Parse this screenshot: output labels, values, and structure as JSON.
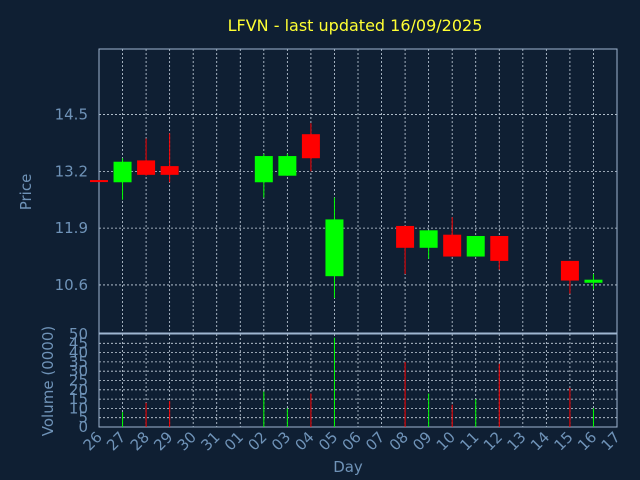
{
  "colors": {
    "background": "#0f1f33",
    "title": "#ffff33",
    "axis_text": "#6f93b8",
    "frame": "#9fb6d0",
    "grid": "#c8d4e0",
    "up": "#00ff00",
    "down": "#ff0000"
  },
  "chart_data": {
    "type": "candlestick",
    "title": "LFVN - last updated 16/09/2025",
    "xlabel": "Day",
    "ylabel": "Price",
    "volume_ylabel": "Volume (0000)",
    "price_ylim": [
      9.5,
      16.0
    ],
    "price_ticks": [
      "10.6",
      "11.9",
      "13.2",
      "14.5"
    ],
    "volume_ylim": [
      0,
      50
    ],
    "volume_ticks": [
      "0",
      "5",
      "10",
      "15",
      "20",
      "25",
      "30",
      "35",
      "40",
      "45",
      "50"
    ],
    "x_ticks": [
      "26",
      "27",
      "28",
      "29",
      "30",
      "31",
      "01",
      "02",
      "03",
      "04",
      "05",
      "06",
      "07",
      "08",
      "09",
      "10",
      "11",
      "12",
      "13",
      "14",
      "15",
      "16",
      "17"
    ],
    "grid": true,
    "candles": [
      {
        "day": "26",
        "open": 13.0,
        "close": 12.97,
        "high": 13.0,
        "low": 12.97,
        "volume": 0
      },
      {
        "day": "27",
        "open": 12.95,
        "close": 13.42,
        "high": 13.5,
        "low": 12.55,
        "volume": 8
      },
      {
        "day": "28",
        "open": 13.45,
        "close": 13.12,
        "high": 13.95,
        "low": 13.1,
        "volume": 13
      },
      {
        "day": "29",
        "open": 13.32,
        "close": 13.12,
        "high": 14.07,
        "low": 12.95,
        "volume": 14
      },
      {
        "day": "02",
        "open": 12.95,
        "close": 13.55,
        "high": 13.6,
        "low": 12.6,
        "volume": 19
      },
      {
        "day": "03",
        "open": 13.1,
        "close": 13.55,
        "high": 13.6,
        "low": 13.1,
        "volume": 10
      },
      {
        "day": "04",
        "open": 14.05,
        "close": 13.5,
        "high": 14.3,
        "low": 13.2,
        "volume": 18
      },
      {
        "day": "05",
        "open": 10.8,
        "close": 12.1,
        "high": 12.6,
        "low": 10.3,
        "volume": 48
      },
      {
        "day": "08",
        "open": 11.95,
        "close": 11.45,
        "high": 11.95,
        "low": 10.85,
        "volume": 35
      },
      {
        "day": "09",
        "open": 11.45,
        "close": 11.85,
        "high": 11.85,
        "low": 11.2,
        "volume": 18
      },
      {
        "day": "10",
        "open": 11.75,
        "close": 11.25,
        "high": 12.15,
        "low": 11.25,
        "volume": 12
      },
      {
        "day": "11",
        "open": 11.25,
        "close": 11.72,
        "high": 11.72,
        "low": 11.25,
        "volume": 15
      },
      {
        "day": "12",
        "open": 11.72,
        "close": 11.15,
        "high": 11.72,
        "low": 10.95,
        "volume": 34
      },
      {
        "day": "15",
        "open": 11.15,
        "close": 10.7,
        "high": 11.15,
        "low": 10.4,
        "volume": 21
      },
      {
        "day": "16",
        "open": 10.65,
        "close": 10.72,
        "high": 10.85,
        "low": 10.5,
        "volume": 10
      }
    ]
  }
}
